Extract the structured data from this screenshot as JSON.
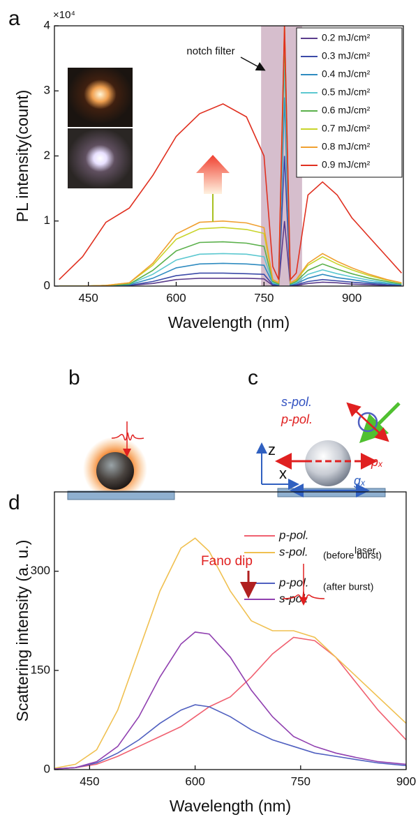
{
  "panel_labels": [
    "a",
    "b",
    "c",
    "d"
  ],
  "chart_data": [
    {
      "type": "line",
      "y_label": "PL intensity(count)",
      "x_label": "Wavelength (nm)",
      "y_scale_label": "×10⁴",
      "annotation": "notch filter",
      "notch_band": [
        745,
        815
      ],
      "legend": "upper right",
      "xlim": [
        392,
        988
      ],
      "ylim": [
        0,
        4
      ],
      "xticks": [
        450,
        600,
        750,
        900
      ],
      "yticks": [
        0,
        1,
        2,
        3,
        4
      ],
      "x": [
        400,
        440,
        480,
        520,
        560,
        600,
        640,
        680,
        720,
        750,
        765,
        775,
        785,
        795,
        805,
        825,
        850,
        875,
        900,
        930,
        960,
        985
      ],
      "series": [
        {
          "name": "0.2 mJ/cm²",
          "color": "#5b3c8c",
          "values": [
            0,
            0,
            0,
            0.01,
            0.04,
            0.1,
            0.12,
            0.12,
            0.12,
            0.11,
            0.01,
            0.01,
            1.0,
            0.01,
            0.01,
            0.04,
            0.06,
            0.05,
            0.03,
            0.02,
            0.01,
            0.01
          ]
        },
        {
          "name": "0.3 mJ/cm²",
          "color": "#3b4aa8",
          "values": [
            0,
            0,
            0,
            0.01,
            0.07,
            0.16,
            0.2,
            0.2,
            0.19,
            0.18,
            0.02,
            0.01,
            2.0,
            0.01,
            0.02,
            0.07,
            0.1,
            0.08,
            0.06,
            0.04,
            0.02,
            0.01
          ]
        },
        {
          "name": "0.4 mJ/cm²",
          "color": "#2e8bc0",
          "values": [
            0,
            0,
            0,
            0.02,
            0.12,
            0.28,
            0.34,
            0.35,
            0.34,
            0.32,
            0.04,
            0.02,
            2.9,
            0.02,
            0.04,
            0.12,
            0.18,
            0.13,
            0.1,
            0.06,
            0.04,
            0.02
          ]
        },
        {
          "name": "0.5 mJ/cm²",
          "color": "#5cc8d0",
          "values": [
            0,
            0,
            0.01,
            0.03,
            0.18,
            0.4,
            0.49,
            0.5,
            0.49,
            0.45,
            0.05,
            0.03,
            3.4,
            0.03,
            0.05,
            0.18,
            0.25,
            0.19,
            0.14,
            0.09,
            0.05,
            0.03
          ]
        },
        {
          "name": "0.6 mJ/cm²",
          "color": "#5ab04a",
          "values": [
            0,
            0,
            0.01,
            0.03,
            0.24,
            0.54,
            0.67,
            0.68,
            0.66,
            0.61,
            0.07,
            0.03,
            3.8,
            0.03,
            0.07,
            0.24,
            0.34,
            0.26,
            0.19,
            0.12,
            0.07,
            0.03
          ]
        },
        {
          "name": "0.7 mJ/cm²",
          "color": "#c8d42a",
          "values": [
            0,
            0,
            0.01,
            0.05,
            0.32,
            0.72,
            0.88,
            0.9,
            0.87,
            0.81,
            0.09,
            0.05,
            4,
            0.05,
            0.09,
            0.32,
            0.45,
            0.34,
            0.25,
            0.16,
            0.09,
            0.05
          ]
        },
        {
          "name": "0.8 mJ/cm²",
          "color": "#f0a030",
          "values": [
            0,
            0,
            0.01,
            0.05,
            0.35,
            0.8,
            0.98,
            1.0,
            0.97,
            0.9,
            0.1,
            0.05,
            4,
            0.05,
            0.1,
            0.35,
            0.5,
            0.38,
            0.28,
            0.18,
            0.1,
            0.05
          ]
        },
        {
          "name": "0.9 mJ/cm²",
          "color": "#e03020",
          "values": [
            0.1,
            0.45,
            0.98,
            1.2,
            1.7,
            2.3,
            2.65,
            2.8,
            2.6,
            2.0,
            0.3,
            0.1,
            4,
            0.1,
            0.2,
            1.4,
            1.6,
            1.4,
            1.05,
            0.75,
            0.45,
            0.2
          ]
        }
      ]
    },
    {
      "type": "line",
      "y_label": "Scattering intensity (a. u.)",
      "x_label": "Wavelength (nm)",
      "legend_groups": [
        "(before burst)",
        "(after burst)"
      ],
      "annotations": [
        "Fano dip",
        "laser"
      ],
      "xlim": [
        400,
        900
      ],
      "ylim": [
        0,
        420
      ],
      "xticks": [
        450,
        600,
        750,
        900
      ],
      "yticks": [
        0,
        150,
        300
      ],
      "x": [
        400,
        430,
        460,
        490,
        520,
        550,
        580,
        600,
        620,
        650,
        680,
        710,
        740,
        770,
        800,
        830,
        860,
        900
      ],
      "series": [
        {
          "name": "p-pol.",
          "color": "#f06070",
          "values": [
            1,
            3,
            8,
            20,
            35,
            50,
            65,
            80,
            95,
            110,
            140,
            175,
            200,
            195,
            170,
            130,
            90,
            45
          ]
        },
        {
          "name": "s-pol.",
          "color": "#f0c050",
          "values": [
            2,
            8,
            30,
            90,
            180,
            270,
            335,
            350,
            330,
            270,
            225,
            210,
            210,
            200,
            170,
            140,
            110,
            70
          ]
        },
        {
          "name": "p-pol.",
          "color": "#5060c0",
          "values": [
            1,
            3,
            10,
            25,
            45,
            70,
            90,
            98,
            95,
            80,
            60,
            45,
            35,
            25,
            20,
            15,
            10,
            6
          ]
        },
        {
          "name": "s-pol.",
          "color": "#9040b0",
          "values": [
            1,
            3,
            12,
            35,
            80,
            140,
            190,
            208,
            205,
            170,
            120,
            80,
            50,
            35,
            25,
            18,
            12,
            8
          ]
        }
      ]
    }
  ],
  "diagram_c": {
    "s_pol": "s-pol.",
    "p_pol": "p-pol.",
    "z_label": "z",
    "x_label": "x",
    "px_label": "pₓ",
    "gx_label": "gₓ"
  }
}
